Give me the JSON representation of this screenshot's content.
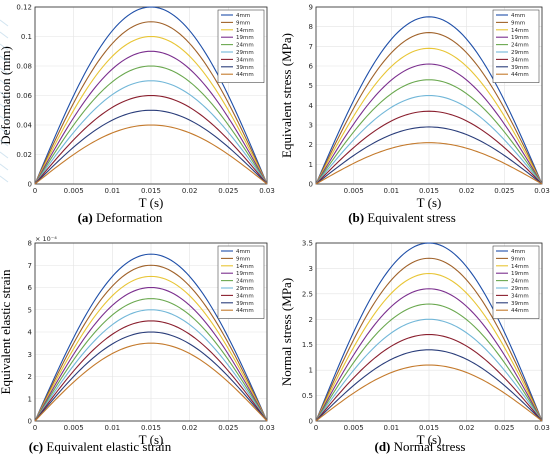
{
  "figure": {
    "series_names": [
      "4mm",
      "9mm",
      "14mm",
      "19mm",
      "24mm",
      "29mm",
      "34mm",
      "39mm",
      "44mm"
    ],
    "series_colors": [
      "#1f4fa8",
      "#a0622a",
      "#e8c535",
      "#7b2f8e",
      "#6aa84f",
      "#72b7d8",
      "#8a1f2e",
      "#2a3d7a",
      "#c47a2c"
    ]
  },
  "chart_data": [
    {
      "panel": "a",
      "type": "line",
      "caption_letter": "(a)",
      "caption_text": "Deformation",
      "xlabel": "T (s)",
      "ylabel": "Deformation (mm)",
      "xlim": [
        0,
        0.03
      ],
      "ylim": [
        0,
        0.12
      ],
      "x_ticks": [
        "0",
        "0.005",
        "0.01",
        "0.015",
        "0.02",
        "0.025",
        "0.03"
      ],
      "y_ticks": [
        "0",
        "0.02",
        "0.04",
        "0.06",
        "0.08",
        "0.1",
        "0.12"
      ],
      "exponent": "",
      "grid": true,
      "legend": "top-right",
      "x": [
        0,
        0.0015,
        0.003,
        0.0045,
        0.006,
        0.0075,
        0.009,
        0.0105,
        0.012,
        0.0135,
        0.015,
        0.0165,
        0.018,
        0.0195,
        0.021,
        0.0225,
        0.024,
        0.0255,
        0.027,
        0.0285,
        0.03
      ],
      "series": [
        {
          "name": "4mm",
          "peak": 0.12
        },
        {
          "name": "9mm",
          "peak": 0.11
        },
        {
          "name": "14mm",
          "peak": 0.1
        },
        {
          "name": "19mm",
          "peak": 0.09
        },
        {
          "name": "24mm",
          "peak": 0.08
        },
        {
          "name": "29mm",
          "peak": 0.07
        },
        {
          "name": "34mm",
          "peak": 0.06
        },
        {
          "name": "39mm",
          "peak": 0.05
        },
        {
          "name": "44mm",
          "peak": 0.04
        }
      ]
    },
    {
      "panel": "b",
      "type": "line",
      "caption_letter": "(b)",
      "caption_text": "Equivalent stress",
      "xlabel": "T (s)",
      "ylabel": "Equivalent stress (MPa)",
      "xlim": [
        0,
        0.03
      ],
      "ylim": [
        0,
        9
      ],
      "x_ticks": [
        "0.005",
        "0.01",
        "0.015",
        "0.02",
        "0.025",
        "0.03"
      ],
      "y_ticks": [
        "0",
        "1",
        "2",
        "3",
        "4",
        "5",
        "6",
        "7",
        "8",
        "9"
      ],
      "exponent": "",
      "grid": true,
      "legend": "top-right",
      "x": [
        0,
        0.0015,
        0.003,
        0.0045,
        0.006,
        0.0075,
        0.009,
        0.0105,
        0.012,
        0.0135,
        0.015,
        0.0165,
        0.018,
        0.0195,
        0.021,
        0.0225,
        0.024,
        0.0255,
        0.027,
        0.0285,
        0.03
      ],
      "series": [
        {
          "name": "4mm",
          "peak": 8.5
        },
        {
          "name": "9mm",
          "peak": 7.7
        },
        {
          "name": "14mm",
          "peak": 6.9
        },
        {
          "name": "19mm",
          "peak": 6.1
        },
        {
          "name": "24mm",
          "peak": 5.3
        },
        {
          "name": "29mm",
          "peak": 4.5
        },
        {
          "name": "34mm",
          "peak": 3.7
        },
        {
          "name": "39mm",
          "peak": 2.9
        },
        {
          "name": "44mm",
          "peak": 2.1
        }
      ]
    },
    {
      "panel": "c",
      "type": "line",
      "caption_letter": "(c)",
      "caption_text": "Equivalent elastic strain",
      "xlabel": "T (s)",
      "ylabel": "Equivalent elastic strain",
      "xlim": [
        0,
        0.03
      ],
      "ylim": [
        0,
        8
      ],
      "x_ticks": [
        "0",
        "0.005",
        "0.01",
        "0.015",
        "0.02",
        "0.025",
        "0.03"
      ],
      "y_ticks": [
        "0",
        "1",
        "2",
        "3",
        "4",
        "5",
        "6",
        "7",
        "8"
      ],
      "exponent": "× 10⁻⁴",
      "grid": true,
      "legend": "top-right",
      "x": [
        0,
        0.0015,
        0.003,
        0.0045,
        0.006,
        0.0075,
        0.009,
        0.0105,
        0.012,
        0.0135,
        0.015,
        0.0165,
        0.018,
        0.0195,
        0.021,
        0.0225,
        0.024,
        0.0255,
        0.027,
        0.0285,
        0.03
      ],
      "series": [
        {
          "name": "4mm",
          "peak": 7.5
        },
        {
          "name": "9mm",
          "peak": 7.0
        },
        {
          "name": "14mm",
          "peak": 6.5
        },
        {
          "name": "19mm",
          "peak": 6.0
        },
        {
          "name": "24mm",
          "peak": 5.5
        },
        {
          "name": "29mm",
          "peak": 5.0
        },
        {
          "name": "34mm",
          "peak": 4.5
        },
        {
          "name": "39mm",
          "peak": 4.0
        },
        {
          "name": "44mm",
          "peak": 3.5
        }
      ]
    },
    {
      "panel": "d",
      "type": "line",
      "caption_letter": "(d)",
      "caption_text": "Normal stress",
      "xlabel": "T (s)",
      "ylabel": "Normal stress (MPa)",
      "xlim": [
        0,
        0.03
      ],
      "ylim": [
        0,
        3.5
      ],
      "x_ticks": [
        "0",
        "0.005",
        "0.01",
        "0.015",
        "0.02",
        "0.025",
        "0.03"
      ],
      "y_ticks": [
        "0",
        "0.5",
        "1",
        "1.5",
        "2",
        "2.5",
        "3",
        "3.5"
      ],
      "exponent": "",
      "grid": true,
      "legend": "top-right",
      "x": [
        0,
        0.0015,
        0.003,
        0.0045,
        0.006,
        0.0075,
        0.009,
        0.0105,
        0.012,
        0.0135,
        0.015,
        0.0165,
        0.018,
        0.0195,
        0.021,
        0.0225,
        0.024,
        0.0255,
        0.027,
        0.0285,
        0.03
      ],
      "series": [
        {
          "name": "4mm",
          "peak": 3.5
        },
        {
          "name": "9mm",
          "peak": 3.2
        },
        {
          "name": "14mm",
          "peak": 2.9
        },
        {
          "name": "19mm",
          "peak": 2.6
        },
        {
          "name": "24mm",
          "peak": 2.3
        },
        {
          "name": "29mm",
          "peak": 2.0
        },
        {
          "name": "34mm",
          "peak": 1.7
        },
        {
          "name": "39mm",
          "peak": 1.4
        },
        {
          "name": "44mm",
          "peak": 1.1
        }
      ]
    }
  ]
}
